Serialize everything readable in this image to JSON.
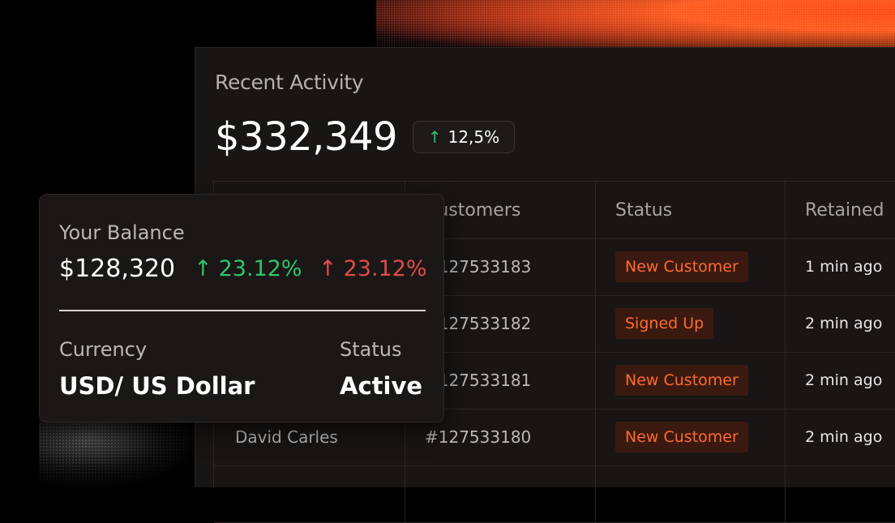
{
  "activity": {
    "title": "Recent Activity",
    "amount": "$332,349",
    "change": {
      "icon": "arrow-up-icon",
      "value": "12,5%"
    }
  },
  "table": {
    "headers": [
      "",
      "Customers",
      "Status",
      "Retained"
    ],
    "rows": [
      {
        "name": "",
        "id": "#127533183",
        "status": "New Customer",
        "retained": "1 min ago"
      },
      {
        "name": "",
        "id": "#127533182",
        "status": "Signed Up",
        "retained": "2 min ago"
      },
      {
        "name": "",
        "id": "#127533181",
        "status": "New Customer",
        "retained": "2 min ago"
      },
      {
        "name": "David Carles",
        "id": "#127533180",
        "status": "New Customer",
        "retained": "2 min ago"
      },
      {
        "name": "",
        "id": "",
        "status": "",
        "retained": ""
      }
    ]
  },
  "balance": {
    "label": "Your Balance",
    "amount": "$128,320",
    "change_positive": "23.12%",
    "change_negative": "23.12%",
    "currency_label": "Currency",
    "currency_value": "USD/ US Dollar",
    "status_label": "Status",
    "status_value": "Active"
  },
  "colors": {
    "positive": "#2fc46f",
    "negative": "#e14b4b",
    "badge_text": "#ff6a2e",
    "badge_bg": "#3a1a10",
    "panel_bg": "#181514"
  }
}
